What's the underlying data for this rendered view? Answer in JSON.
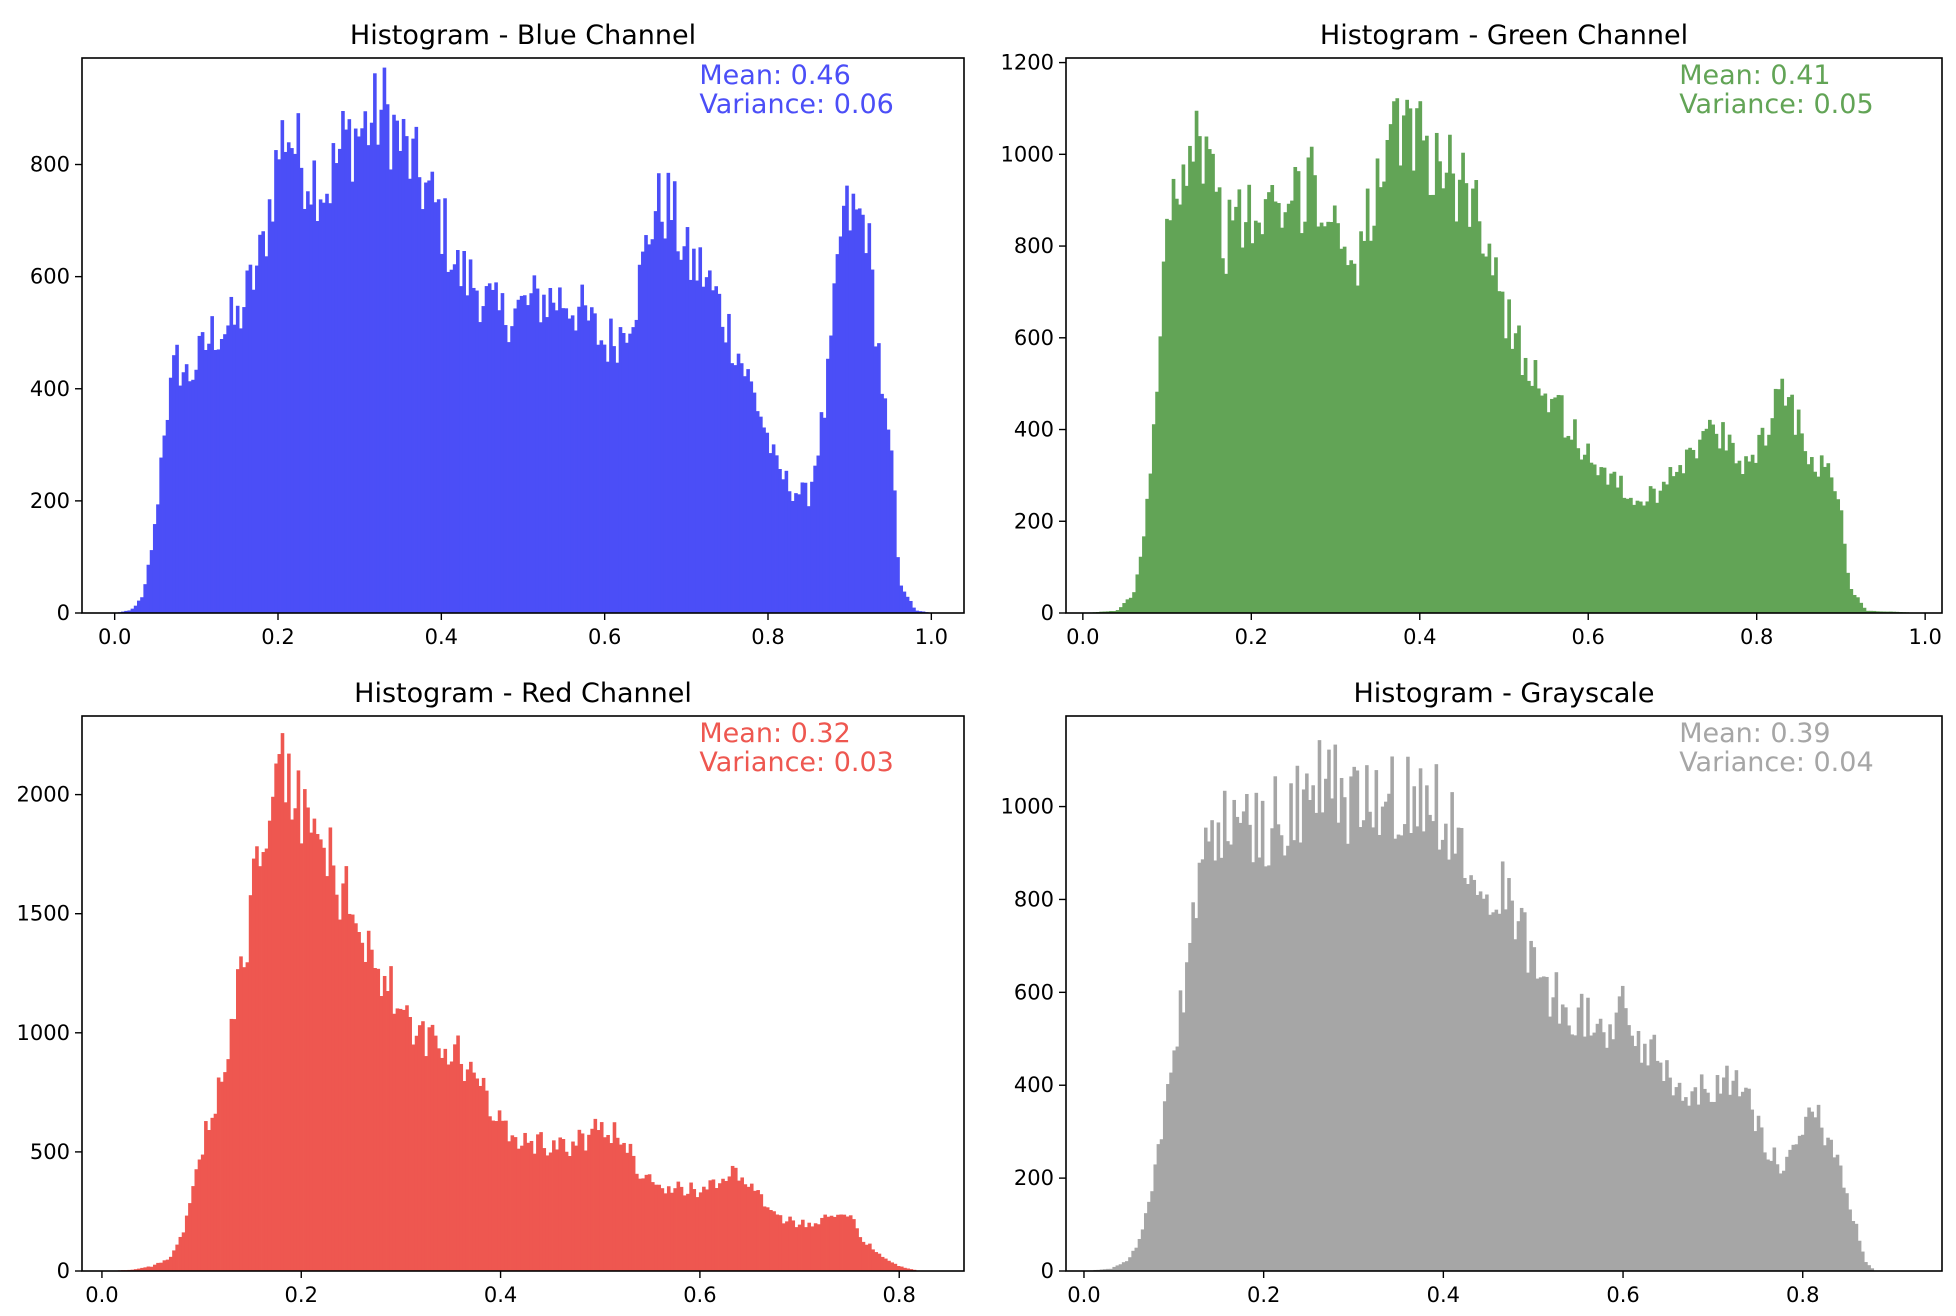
{
  "chart_data": [
    {
      "type": "bar",
      "title": "Histogram - Blue Channel",
      "color": "#4b4ef7",
      "annotations": [
        "Mean: 0.46",
        "Variance: 0.06"
      ],
      "annotation_position": "top-right",
      "xlim": [
        -0.04,
        1.04
      ],
      "ylim": [
        0,
        990
      ],
      "xticks": [
        0.0,
        0.2,
        0.4,
        0.6,
        0.8,
        1.0
      ],
      "xtick_labels": [
        "0.0",
        "0.2",
        "0.4",
        "0.6",
        "0.8",
        "1.0"
      ],
      "yticks": [
        0,
        200,
        400,
        600,
        800
      ],
      "ytick_labels": [
        "0",
        "200",
        "400",
        "600",
        "800"
      ],
      "bins": 256,
      "bin_range": [
        0,
        1
      ],
      "profile": [
        [
          0.0,
          0
        ],
        [
          0.02,
          5
        ],
        [
          0.035,
          30
        ],
        [
          0.05,
          160
        ],
        [
          0.06,
          330
        ],
        [
          0.075,
          450
        ],
        [
          0.09,
          420
        ],
        [
          0.12,
          500
        ],
        [
          0.15,
          520
        ],
        [
          0.18,
          640
        ],
        [
          0.2,
          820
        ],
        [
          0.21,
          870
        ],
        [
          0.23,
          800
        ],
        [
          0.26,
          760
        ],
        [
          0.28,
          840
        ],
        [
          0.31,
          870
        ],
        [
          0.33,
          900
        ],
        [
          0.35,
          840
        ],
        [
          0.38,
          760
        ],
        [
          0.4,
          700
        ],
        [
          0.42,
          610
        ],
        [
          0.44,
          590
        ],
        [
          0.47,
          530
        ],
        [
          0.49,
          540
        ],
        [
          0.52,
          560
        ],
        [
          0.55,
          560
        ],
        [
          0.57,
          540
        ],
        [
          0.6,
          480
        ],
        [
          0.62,
          500
        ],
        [
          0.64,
          570
        ],
        [
          0.66,
          720
        ],
        [
          0.68,
          730
        ],
        [
          0.7,
          630
        ],
        [
          0.72,
          610
        ],
        [
          0.74,
          550
        ],
        [
          0.77,
          440
        ],
        [
          0.79,
          360
        ],
        [
          0.81,
          260
        ],
        [
          0.83,
          220
        ],
        [
          0.85,
          210
        ],
        [
          0.87,
          370
        ],
        [
          0.88,
          520
        ],
        [
          0.89,
          700
        ],
        [
          0.9,
          710
        ],
        [
          0.92,
          700
        ],
        [
          0.94,
          400
        ],
        [
          0.955,
          220
        ],
        [
          0.96,
          60
        ],
        [
          0.98,
          5
        ],
        [
          1.0,
          0
        ]
      ]
    },
    {
      "type": "bar",
      "title": "Histogram - Green Channel",
      "color": "#62a456",
      "annotations": [
        "Mean: 0.41",
        "Variance: 0.05"
      ],
      "annotation_position": "top-right",
      "xlim": [
        -0.02,
        1.02
      ],
      "ylim": [
        0,
        1210
      ],
      "xticks": [
        0.0,
        0.2,
        0.4,
        0.6,
        0.8,
        1.0
      ],
      "xtick_labels": [
        "0.0",
        "0.2",
        "0.4",
        "0.6",
        "0.8",
        "1.0"
      ],
      "yticks": [
        0,
        200,
        400,
        600,
        800,
        1000,
        1200
      ],
      "ytick_labels": [
        "0",
        "200",
        "400",
        "600",
        "800",
        "1000",
        "1200"
      ],
      "bins": 256,
      "bin_range": [
        0,
        1
      ],
      "profile": [
        [
          0.0,
          0
        ],
        [
          0.04,
          5
        ],
        [
          0.06,
          40
        ],
        [
          0.075,
          200
        ],
        [
          0.085,
          450
        ],
        [
          0.095,
          700
        ],
        [
          0.1,
          950
        ],
        [
          0.12,
          950
        ],
        [
          0.13,
          1060
        ],
        [
          0.15,
          980
        ],
        [
          0.17,
          820
        ],
        [
          0.19,
          860
        ],
        [
          0.22,
          860
        ],
        [
          0.25,
          880
        ],
        [
          0.26,
          920
        ],
        [
          0.27,
          980
        ],
        [
          0.28,
          900
        ],
        [
          0.3,
          840
        ],
        [
          0.32,
          780
        ],
        [
          0.33,
          800
        ],
        [
          0.35,
          930
        ],
        [
          0.37,
          1020
        ],
        [
          0.39,
          1040
        ],
        [
          0.4,
          1060
        ],
        [
          0.42,
          980
        ],
        [
          0.45,
          930
        ],
        [
          0.47,
          880
        ],
        [
          0.49,
          780
        ],
        [
          0.5,
          640
        ],
        [
          0.52,
          580
        ],
        [
          0.54,
          520
        ],
        [
          0.56,
          460
        ],
        [
          0.58,
          400
        ],
        [
          0.6,
          340
        ],
        [
          0.62,
          310
        ],
        [
          0.64,
          270
        ],
        [
          0.66,
          240
        ],
        [
          0.68,
          260
        ],
        [
          0.7,
          320
        ],
        [
          0.72,
          340
        ],
        [
          0.73,
          360
        ],
        [
          0.74,
          400
        ],
        [
          0.76,
          380
        ],
        [
          0.78,
          320
        ],
        [
          0.8,
          360
        ],
        [
          0.82,
          440
        ],
        [
          0.83,
          510
        ],
        [
          0.84,
          460
        ],
        [
          0.86,
          360
        ],
        [
          0.88,
          310
        ],
        [
          0.89,
          290
        ],
        [
          0.9,
          240
        ],
        [
          0.91,
          60
        ],
        [
          0.93,
          5
        ],
        [
          1.0,
          0
        ]
      ]
    },
    {
      "type": "bar",
      "title": "Histogram - Red Channel",
      "color": "#ee5750",
      "annotations": [
        "Mean: 0.32",
        "Variance: 0.03"
      ],
      "annotation_position": "top-right",
      "xlim": [
        -0.02,
        0.865
      ],
      "ylim": [
        0,
        2330
      ],
      "xticks": [
        0.0,
        0.2,
        0.4,
        0.6,
        0.8
      ],
      "xtick_labels": [
        "0.0",
        "0.2",
        "0.4",
        "0.6",
        "0.8"
      ],
      "yticks": [
        0,
        500,
        1000,
        1500,
        2000
      ],
      "ytick_labels": [
        "0",
        "500",
        "1000",
        "1500",
        "2000"
      ],
      "bins": 256,
      "bin_range": [
        0,
        0.82
      ],
      "profile": [
        [
          0.0,
          0
        ],
        [
          0.03,
          5
        ],
        [
          0.05,
          20
        ],
        [
          0.07,
          60
        ],
        [
          0.08,
          150
        ],
        [
          0.09,
          300
        ],
        [
          0.1,
          500
        ],
        [
          0.11,
          680
        ],
        [
          0.12,
          820
        ],
        [
          0.13,
          1050
        ],
        [
          0.14,
          1250
        ],
        [
          0.15,
          1550
        ],
        [
          0.16,
          1800
        ],
        [
          0.17,
          1950
        ],
        [
          0.18,
          2100
        ],
        [
          0.19,
          2000
        ],
        [
          0.2,
          1950
        ],
        [
          0.21,
          1900
        ],
        [
          0.22,
          1800
        ],
        [
          0.24,
          1600
        ],
        [
          0.26,
          1450
        ],
        [
          0.28,
          1250
        ],
        [
          0.3,
          1080
        ],
        [
          0.32,
          980
        ],
        [
          0.34,
          920
        ],
        [
          0.36,
          900
        ],
        [
          0.38,
          760
        ],
        [
          0.4,
          620
        ],
        [
          0.42,
          560
        ],
        [
          0.44,
          540
        ],
        [
          0.46,
          520
        ],
        [
          0.48,
          540
        ],
        [
          0.5,
          600
        ],
        [
          0.52,
          570
        ],
        [
          0.54,
          420
        ],
        [
          0.56,
          360
        ],
        [
          0.58,
          340
        ],
        [
          0.6,
          340
        ],
        [
          0.62,
          390
        ],
        [
          0.64,
          410
        ],
        [
          0.66,
          300
        ],
        [
          0.68,
          220
        ],
        [
          0.7,
          200
        ],
        [
          0.72,
          210
        ],
        [
          0.74,
          230
        ],
        [
          0.75,
          260
        ],
        [
          0.76,
          150
        ],
        [
          0.78,
          70
        ],
        [
          0.8,
          20
        ],
        [
          0.82,
          0
        ]
      ]
    },
    {
      "type": "bar",
      "title": "Histogram - Grayscale",
      "color": "#a6a6a6",
      "annotations": [
        "Mean: 0.39",
        "Variance: 0.04"
      ],
      "annotation_position": "top-right",
      "xlim": [
        -0.02,
        0.955
      ],
      "ylim": [
        0,
        1195
      ],
      "xticks": [
        0.0,
        0.2,
        0.4,
        0.6,
        0.8
      ],
      "xtick_labels": [
        "0.0",
        "0.2",
        "0.4",
        "0.6",
        "0.8"
      ],
      "yticks": [
        0,
        200,
        400,
        600,
        800,
        1000
      ],
      "ytick_labels": [
        "0",
        "200",
        "400",
        "600",
        "800",
        "1000"
      ],
      "bins": 256,
      "bin_range": [
        0,
        0.9
      ],
      "profile": [
        [
          0.0,
          0
        ],
        [
          0.03,
          5
        ],
        [
          0.05,
          25
        ],
        [
          0.06,
          60
        ],
        [
          0.07,
          130
        ],
        [
          0.08,
          230
        ],
        [
          0.09,
          350
        ],
        [
          0.1,
          470
        ],
        [
          0.11,
          580
        ],
        [
          0.12,
          760
        ],
        [
          0.13,
          860
        ],
        [
          0.14,
          940
        ],
        [
          0.15,
          960
        ],
        [
          0.18,
          950
        ],
        [
          0.2,
          960
        ],
        [
          0.23,
          990
        ],
        [
          0.26,
          1040
        ],
        [
          0.28,
          1050
        ],
        [
          0.3,
          1000
        ],
        [
          0.32,
          1030
        ],
        [
          0.35,
          1010
        ],
        [
          0.38,
          1030
        ],
        [
          0.4,
          980
        ],
        [
          0.42,
          940
        ],
        [
          0.44,
          880
        ],
        [
          0.46,
          830
        ],
        [
          0.48,
          780
        ],
        [
          0.5,
          650
        ],
        [
          0.52,
          600
        ],
        [
          0.54,
          570
        ],
        [
          0.56,
          540
        ],
        [
          0.58,
          520
        ],
        [
          0.6,
          560
        ],
        [
          0.62,
          490
        ],
        [
          0.64,
          460
        ],
        [
          0.66,
          400
        ],
        [
          0.68,
          390
        ],
        [
          0.7,
          400
        ],
        [
          0.72,
          420
        ],
        [
          0.74,
          360
        ],
        [
          0.76,
          260
        ],
        [
          0.78,
          220
        ],
        [
          0.8,
          300
        ],
        [
          0.81,
          360
        ],
        [
          0.82,
          320
        ],
        [
          0.84,
          220
        ],
        [
          0.86,
          90
        ],
        [
          0.87,
          20
        ],
        [
          0.88,
          0
        ]
      ]
    }
  ]
}
